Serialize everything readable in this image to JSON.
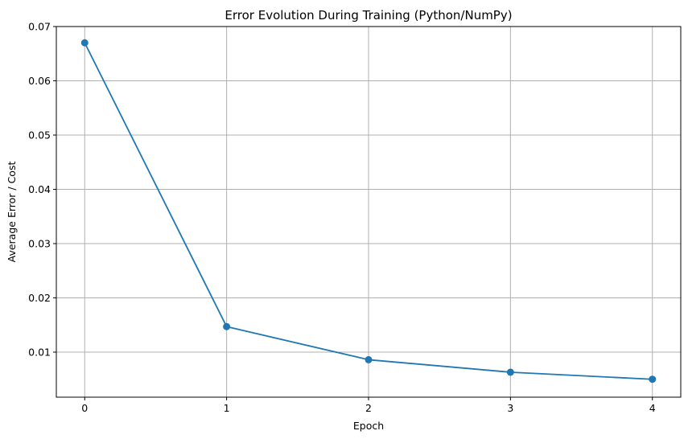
{
  "chart_data": {
    "type": "line",
    "title": "Error Evolution During Training (Python/NumPy)",
    "xlabel": "Epoch",
    "ylabel": "Average Error / Cost",
    "x": [
      0,
      1,
      2,
      3,
      4
    ],
    "series": [
      {
        "values": [
          0.067,
          0.0147,
          0.0086,
          0.0063,
          0.005
        ],
        "color": "#1f77b4",
        "marker": "circle"
      }
    ],
    "xticks": [
      "0",
      "1",
      "2",
      "3",
      "4"
    ],
    "yticks": [
      "0.01",
      "0.02",
      "0.03",
      "0.04",
      "0.05",
      "0.06",
      "0.07"
    ],
    "xlim": [
      -0.2,
      4.2
    ],
    "ylim": [
      0.0017,
      0.07
    ],
    "grid": true,
    "colors": {
      "line": "#1f77b4",
      "grid": "#b0b0b0",
      "axes": "#000000"
    }
  }
}
